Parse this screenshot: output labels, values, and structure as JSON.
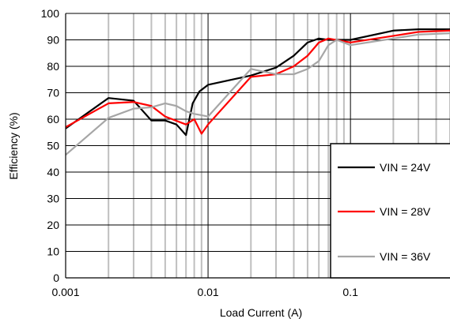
{
  "chart_data": {
    "type": "line",
    "title": "",
    "xlabel": "Load Current (A)",
    "ylabel": "Efficiency (%)",
    "xscale": "log",
    "xlim": [
      0.001,
      0.5
    ],
    "ylim": [
      0,
      100
    ],
    "grid": true,
    "legend_position": "right",
    "x_ticks": [
      {
        "value": 0.001,
        "label": "0.001"
      },
      {
        "value": 0.01,
        "label": "0.01"
      },
      {
        "value": 0.1,
        "label": "0.1"
      }
    ],
    "y_ticks": [
      0,
      10,
      20,
      30,
      40,
      50,
      60,
      70,
      80,
      90,
      100
    ],
    "series": [
      {
        "name": "VIN = 24V",
        "color": "#000000",
        "points": [
          [
            0.001,
            56.5
          ],
          [
            0.002,
            68
          ],
          [
            0.003,
            67
          ],
          [
            0.004,
            59.5
          ],
          [
            0.005,
            59.5
          ],
          [
            0.006,
            58
          ],
          [
            0.007,
            54
          ],
          [
            0.0078,
            66
          ],
          [
            0.0087,
            70.5
          ],
          [
            0.01,
            73
          ],
          [
            0.02,
            76.5
          ],
          [
            0.03,
            79.5
          ],
          [
            0.04,
            84
          ],
          [
            0.05,
            89
          ],
          [
            0.06,
            90.5
          ],
          [
            0.07,
            90
          ],
          [
            0.1,
            90
          ],
          [
            0.2,
            93.5
          ],
          [
            0.3,
            94
          ],
          [
            0.5,
            94
          ]
        ]
      },
      {
        "name": "VIN = 28V",
        "color": "#ff0000",
        "points": [
          [
            0.001,
            57
          ],
          [
            0.002,
            66
          ],
          [
            0.003,
            66.5
          ],
          [
            0.004,
            65
          ],
          [
            0.005,
            61
          ],
          [
            0.007,
            58
          ],
          [
            0.008,
            60
          ],
          [
            0.009,
            54.5
          ],
          [
            0.01,
            58
          ],
          [
            0.02,
            76
          ],
          [
            0.03,
            77
          ],
          [
            0.04,
            80
          ],
          [
            0.05,
            84
          ],
          [
            0.06,
            89
          ],
          [
            0.07,
            90.5
          ],
          [
            0.1,
            89
          ],
          [
            0.2,
            91.5
          ],
          [
            0.3,
            93
          ],
          [
            0.5,
            93.5
          ]
        ]
      },
      {
        "name": "VIN = 36V",
        "color": "#a6a6a6",
        "points": [
          [
            0.001,
            46.5
          ],
          [
            0.002,
            60.5
          ],
          [
            0.003,
            64
          ],
          [
            0.004,
            64.5
          ],
          [
            0.005,
            66
          ],
          [
            0.006,
            65
          ],
          [
            0.007,
            63
          ],
          [
            0.008,
            62
          ],
          [
            0.009,
            61.5
          ],
          [
            0.01,
            61
          ],
          [
            0.02,
            79
          ],
          [
            0.03,
            77
          ],
          [
            0.04,
            77
          ],
          [
            0.05,
            79
          ],
          [
            0.06,
            82
          ],
          [
            0.07,
            88
          ],
          [
            0.08,
            90
          ],
          [
            0.1,
            88
          ],
          [
            0.2,
            90.5
          ],
          [
            0.3,
            92
          ],
          [
            0.5,
            92.5
          ]
        ]
      }
    ]
  }
}
